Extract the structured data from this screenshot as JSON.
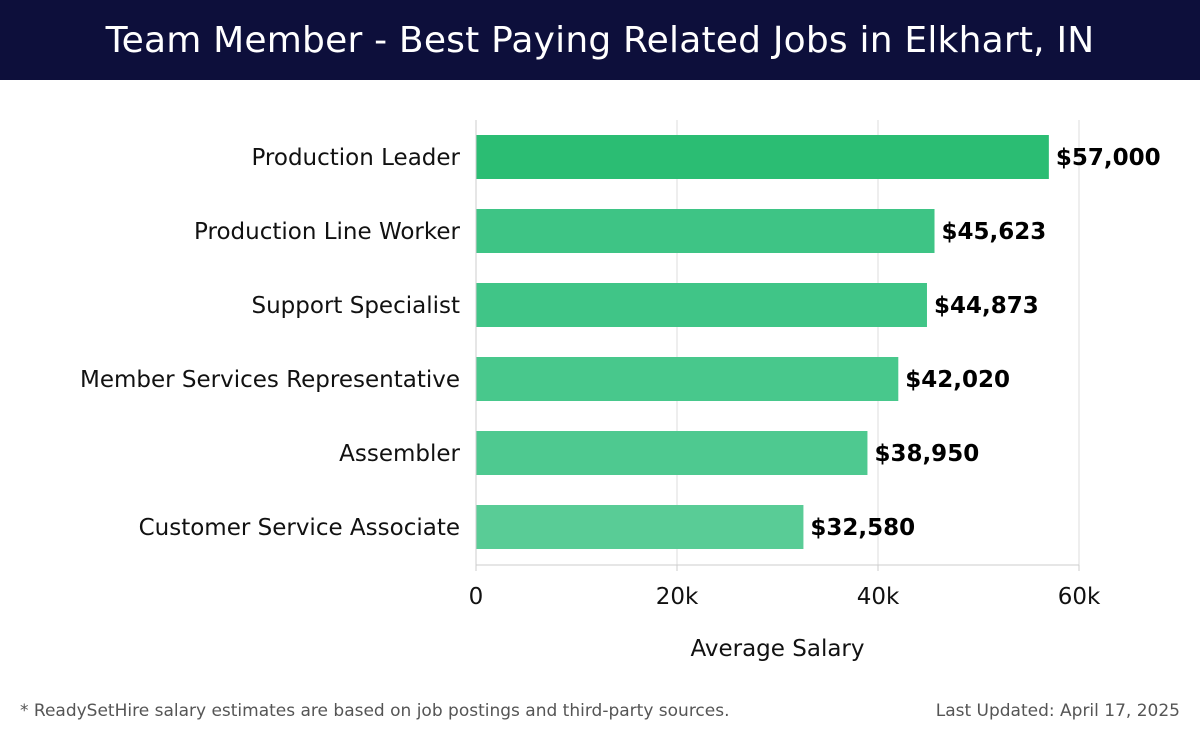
{
  "header": {
    "title": "Team Member - Best Paying Related Jobs in Elkhart, IN"
  },
  "colors": {
    "header_bg": "#0d0f3b",
    "bar_colors": [
      "#2bbd73",
      "#3ec485",
      "#40c587",
      "#48c88c",
      "#4ec990",
      "#59cc96"
    ]
  },
  "chart_data": {
    "type": "bar",
    "orientation": "horizontal",
    "categories": [
      "Production Leader",
      "Production Line Worker",
      "Support Specialist",
      "Member Services Representative",
      "Assembler",
      "Customer Service Associate"
    ],
    "values": [
      57000,
      45623,
      44873,
      42020,
      38950,
      32580
    ],
    "value_labels": [
      "$57,000",
      "$45,623",
      "$44,873",
      "$42,020",
      "$38,950",
      "$32,580"
    ],
    "xlabel": "Average Salary",
    "xlim": [
      0,
      60000
    ],
    "xticks": [
      0,
      20000,
      40000,
      60000
    ],
    "xtick_labels": [
      "0",
      "20k",
      "40k",
      "60k"
    ],
    "grid": true
  },
  "footer": {
    "note": "* ReadySetHire salary estimates are based on job postings and third-party sources.",
    "updated": "Last Updated: April 17, 2025"
  }
}
